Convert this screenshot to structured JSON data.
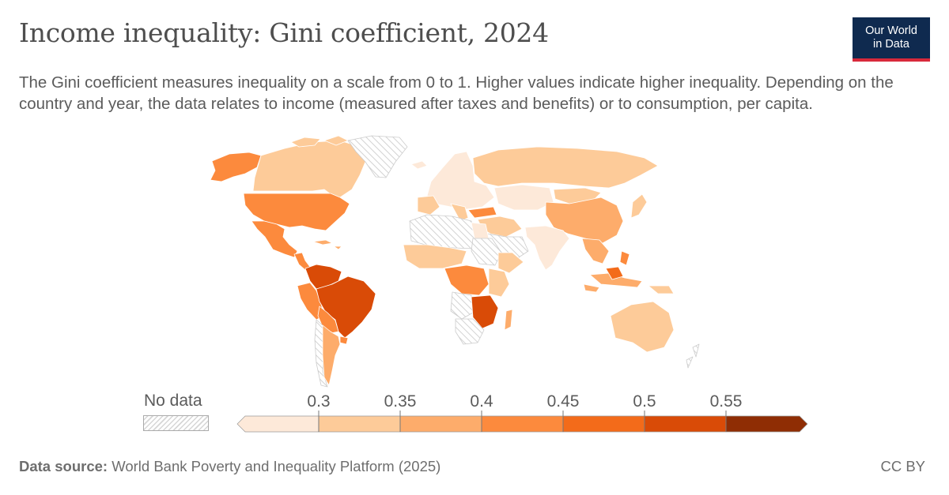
{
  "header": {
    "title": "Income inequality: Gini coefficient, 2024",
    "subtitle": "The Gini coefficient measures inequality on a scale from 0 to 1. Higher values indicate higher inequality. Depending on the country and year, the data relates to income (measured after taxes and benefits) or to consumption, per capita."
  },
  "logo": {
    "line1": "Our World",
    "line2": "in Data"
  },
  "legend": {
    "no_data_label": "No data",
    "bins": [
      {
        "from": null,
        "to": 0.3,
        "color": "#fde9d9"
      },
      {
        "from": 0.3,
        "to": 0.35,
        "color": "#fdcb99"
      },
      {
        "from": 0.35,
        "to": 0.4,
        "color": "#fdac6b"
      },
      {
        "from": 0.4,
        "to": 0.45,
        "color": "#fc8a3d"
      },
      {
        "from": 0.45,
        "to": 0.5,
        "color": "#f36b1a"
      },
      {
        "from": 0.5,
        "to": 0.55,
        "color": "#d94b07"
      },
      {
        "from": 0.55,
        "to": null,
        "color": "#8f2d04"
      }
    ],
    "tick_labels": [
      "0.3",
      "0.35",
      "0.4",
      "0.45",
      "0.5",
      "0.55"
    ]
  },
  "footer": {
    "source_label": "Data source:",
    "source_text": "World Bank Poverty and Inequality Platform (2025)",
    "license": "CC BY"
  },
  "colors": {
    "border": "#ffffff",
    "no_data_hatch": "#d6d6d6",
    "brand_blue": "#0f2a4f",
    "brand_red": "#d8293b"
  }
}
